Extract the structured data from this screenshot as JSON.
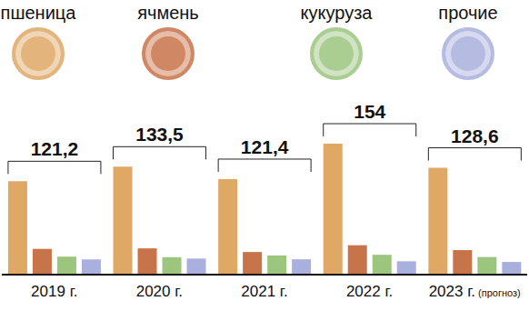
{
  "chart_data": {
    "type": "bar",
    "categories": [
      "2019 г.",
      "2020 г.",
      "2021 г.",
      "2022 г.",
      "2023 г. (прогноз)"
    ],
    "series": [
      {
        "name": "пшеница",
        "color": "#dfa865",
        "values": [
          74.3,
          85.9,
          76.0,
          104.2,
          85.0
        ]
      },
      {
        "name": "ячмень",
        "color": "#c8744a",
        "values": [
          20.5,
          20.9,
          18.0,
          23.4,
          19.5
        ]
      },
      {
        "name": "кукуруза",
        "color": "#9cc57e",
        "values": [
          14.3,
          13.9,
          15.2,
          15.8,
          14.0
        ]
      },
      {
        "name": "прочие",
        "color": "#aab0de",
        "values": [
          12.1,
          12.8,
          12.2,
          10.6,
          10.1
        ]
      }
    ],
    "totals": {
      "values": [
        121.2,
        133.5,
        121.4,
        154,
        128.6
      ],
      "value_labels": [
        "121,2",
        "133,5",
        "121,4",
        "154",
        "128,6"
      ]
    },
    "ylim": [
      0,
      110
    ],
    "tick_labels": "x",
    "legend": "top"
  }
}
